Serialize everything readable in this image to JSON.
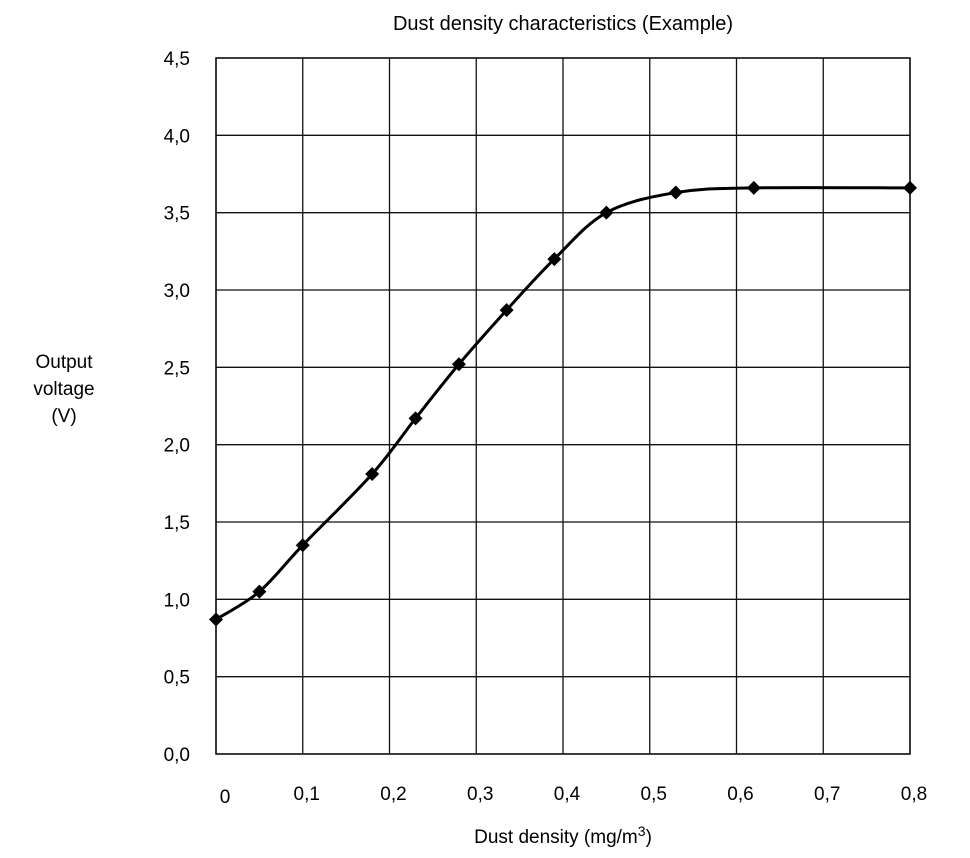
{
  "chart_data": {
    "type": "line",
    "title": "Dust density characteristics (Example)",
    "xlabel": "Dust density (mg/m3)",
    "xlabel_parts": {
      "main": "Dust density (mg/m",
      "sup": "3",
      "close": ")"
    },
    "ylabel_lines": [
      "Output",
      "voltage",
      "(V)"
    ],
    "xlim": [
      0,
      0.8
    ],
    "ylim": [
      0,
      4.5
    ],
    "x_ticks": [
      0,
      0.1,
      0.2,
      0.3,
      0.4,
      0.5,
      0.6,
      0.7,
      0.8
    ],
    "x_tick_labels": [
      "0",
      "0,1",
      "0,2",
      "0,3",
      "0,4",
      "0,5",
      "0,6",
      "0,7",
      "0,8"
    ],
    "y_ticks": [
      0,
      0.5,
      1.0,
      1.5,
      2.0,
      2.5,
      3.0,
      3.5,
      4.0,
      4.5
    ],
    "y_tick_labels": [
      "0,0",
      "0,5",
      "1,0",
      "1,5",
      "2,0",
      "2,5",
      "3,0",
      "3,5",
      "4,0",
      "4,5"
    ],
    "grid": true,
    "marker": "diamond",
    "colors": {
      "line": "#000000",
      "grid": "#111111",
      "background": "#ffffff"
    },
    "series": [
      {
        "x": [
          0.0,
          0.05,
          0.1,
          0.18,
          0.23,
          0.28,
          0.335,
          0.39,
          0.45,
          0.53,
          0.62,
          0.8
        ],
        "y": [
          0.87,
          1.05,
          1.35,
          1.81,
          2.17,
          2.52,
          2.87,
          3.2,
          3.5,
          3.63,
          3.66,
          3.66
        ]
      }
    ]
  }
}
